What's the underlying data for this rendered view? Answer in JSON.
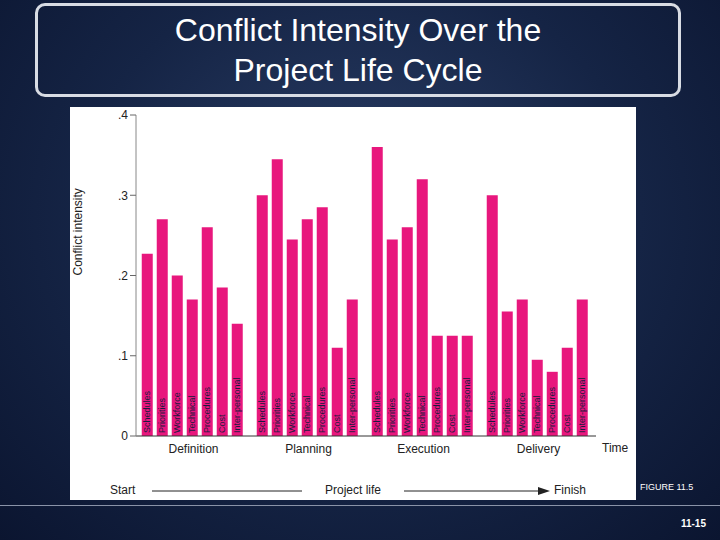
{
  "chart_data": {
    "type": "bar",
    "title": "Conflict Intensity Over the Project Life Cycle",
    "x_label": "Time",
    "y_label": "Conflict intensity",
    "annotations": [
      "Start",
      "Project life",
      "Finish"
    ],
    "categories": [
      "Definition",
      "Planning",
      "Execution",
      "Delivery"
    ],
    "series": [
      {
        "name": "Schedules",
        "color": "#e8177d",
        "values": [
          0.227,
          0.3,
          0.36,
          0.3
        ]
      },
      {
        "name": "Priorities",
        "color": "#e8177d",
        "values": [
          0.27,
          0.345,
          0.245,
          0.155
        ]
      },
      {
        "name": "Workforce",
        "color": "#e8177d",
        "values": [
          0.2,
          0.245,
          0.26,
          0.17
        ]
      },
      {
        "name": "Technical",
        "color": "#e8177d",
        "values": [
          0.17,
          0.27,
          0.32,
          0.095
        ]
      },
      {
        "name": "Procedures",
        "color": "#e8177d",
        "values": [
          0.26,
          0.285,
          0.125,
          0.08
        ]
      },
      {
        "name": "Cost",
        "color": "#e8177d",
        "values": [
          0.185,
          0.11,
          0.125,
          0.11
        ]
      },
      {
        "name": "Inter-personal",
        "color": "#e8177d",
        "values": [
          0.14,
          0.17,
          0.125,
          0.17
        ]
      }
    ],
    "ylim": [
      0,
      0.4
    ],
    "yticks": [
      0,
      {
        "value": 0.1,
        "label": ".1"
      },
      {
        "value": 0.2,
        "label": ".2"
      },
      {
        "value": 0.3,
        "label": ".3"
      },
      {
        "value": 0.4,
        "label": ".4"
      }
    ],
    "grid": false
  },
  "slide": {
    "figure_label": "FIGURE 11.5",
    "page_number": "11-15"
  }
}
